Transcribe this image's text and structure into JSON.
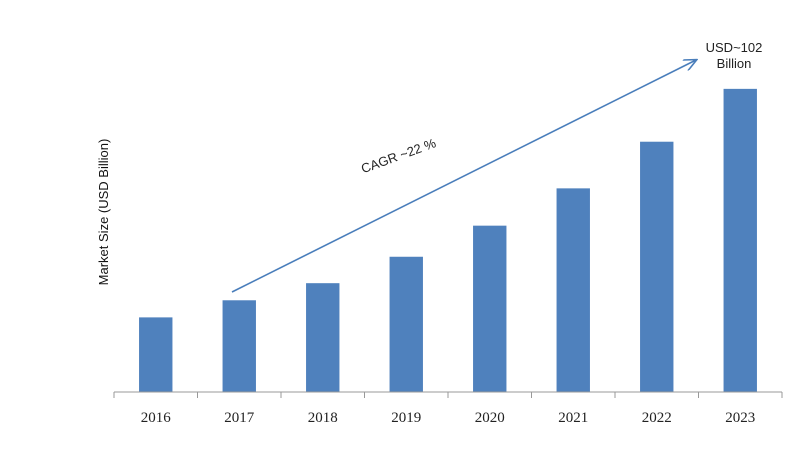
{
  "chart_data": {
    "type": "bar",
    "categories": [
      "2016",
      "2017",
      "2018",
      "2019",
      "2020",
      "2021",
      "2022",
      "2023"
    ],
    "values": [
      24,
      29.5,
      35,
      43.5,
      53.5,
      65.5,
      80.5,
      97.5
    ],
    "ylabel": "Market Size (USD Billion)",
    "xlabel": "",
    "ylim": [
      0,
      110
    ],
    "grid": false,
    "legend": "none",
    "bar_color": "#4f81bd",
    "annotations": {
      "cagr": "CAGR ~22 %",
      "end_value_line1": "USD~102",
      "end_value_line2": "Billion"
    }
  }
}
